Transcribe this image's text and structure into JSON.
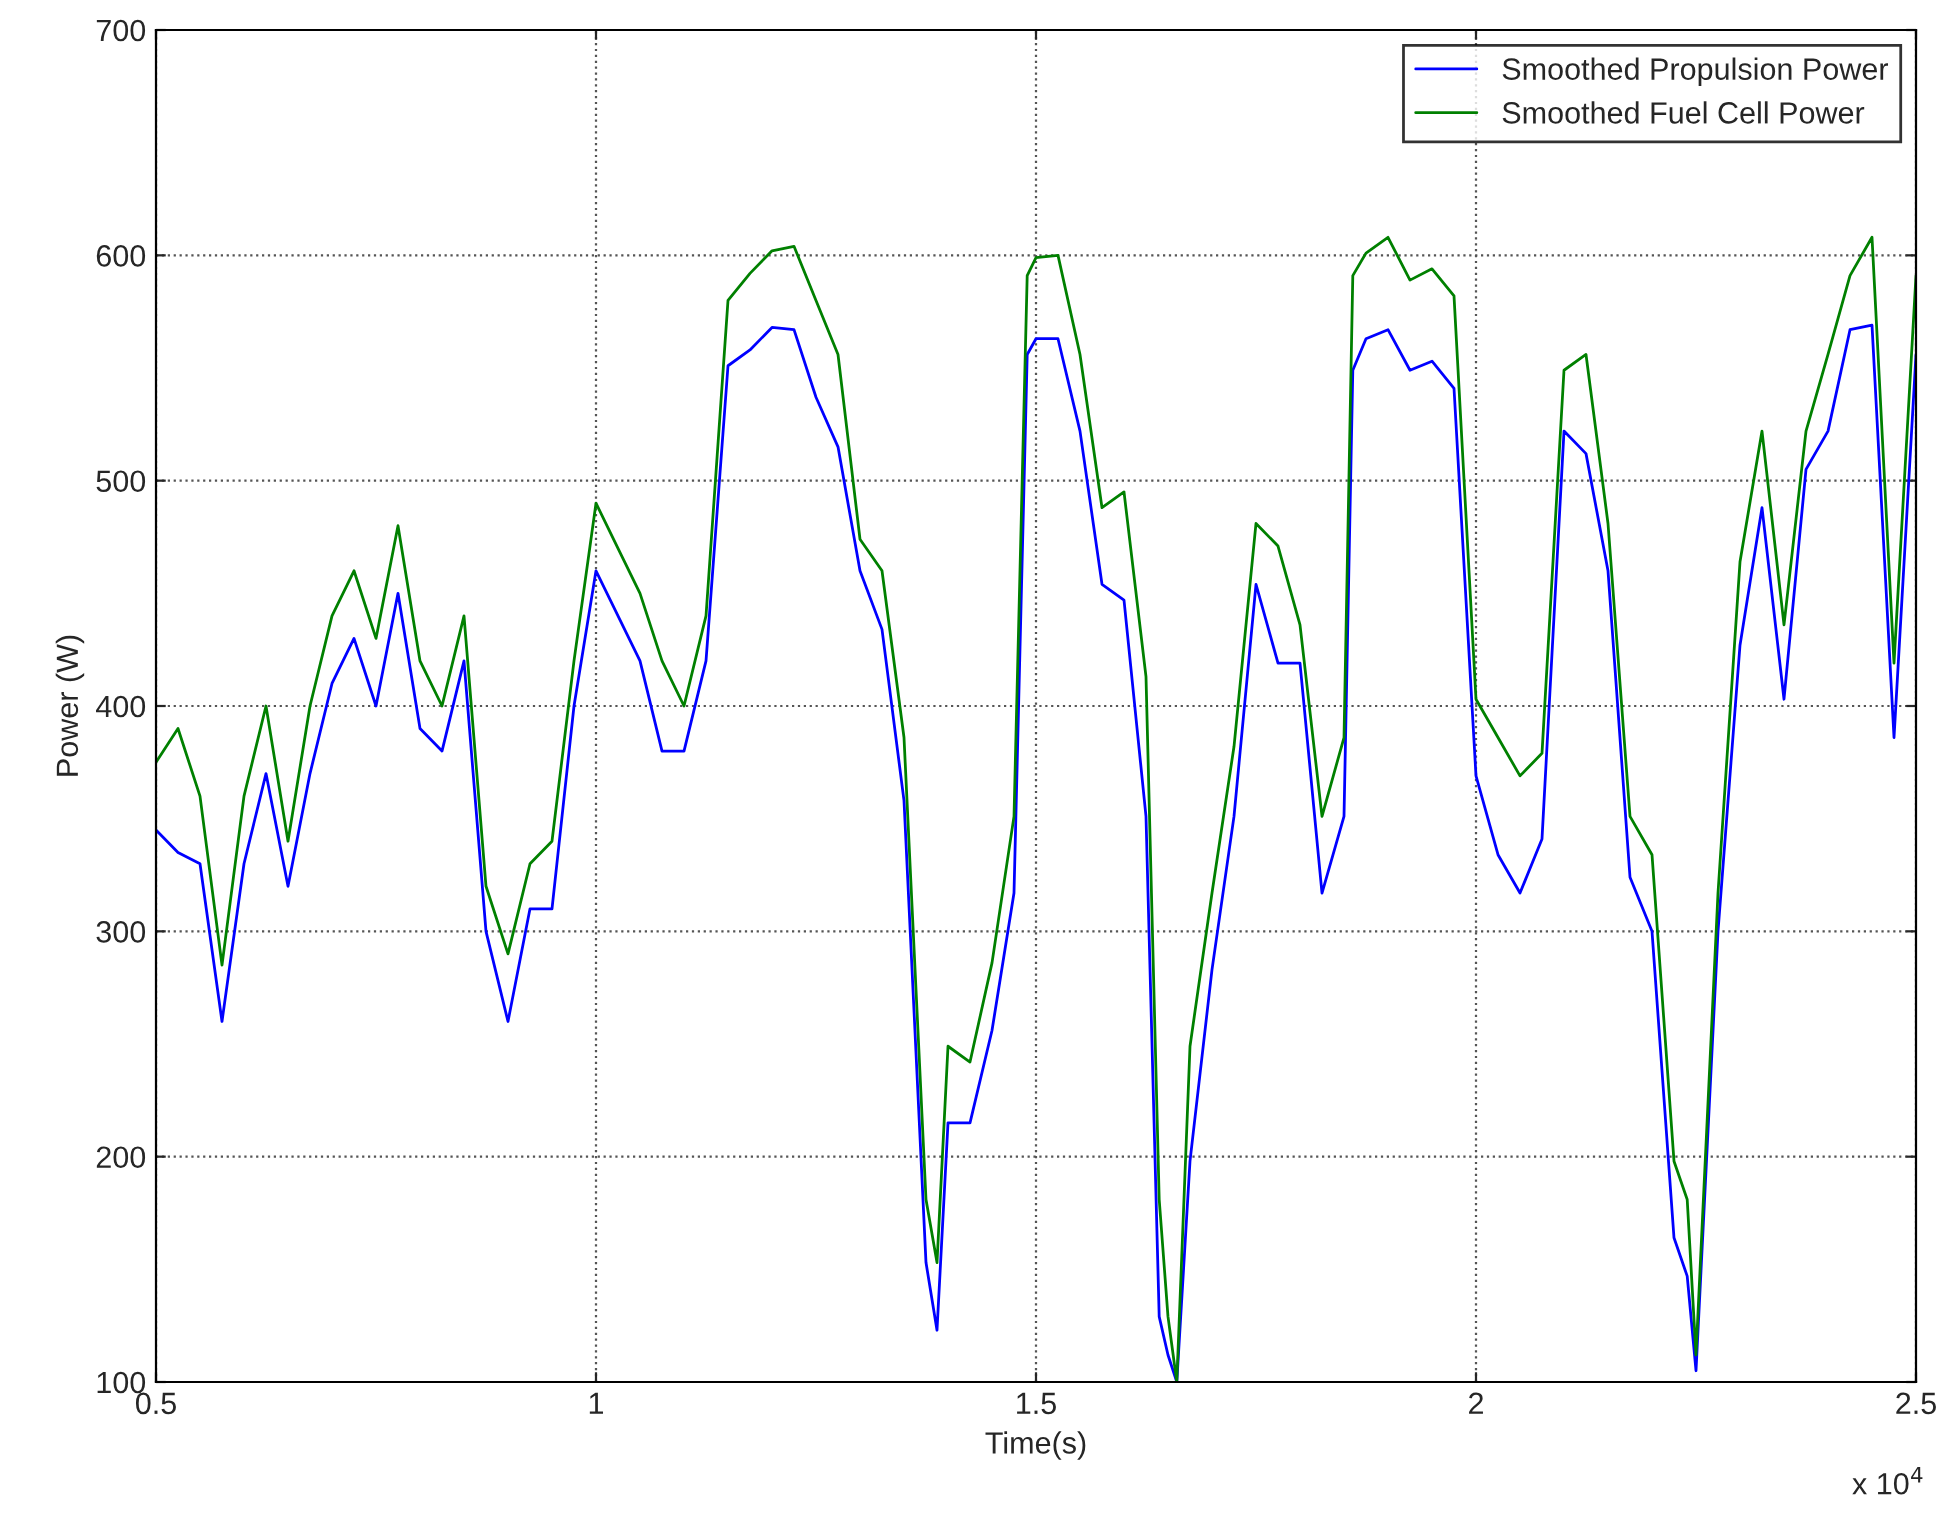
{
  "chart_data": {
    "type": "line",
    "xlabel": "Time(s)",
    "ylabel": "Power (W)",
    "annotations": [
      "x 10$^{4}$"
    ],
    "x": [
      0.5,
      0.525,
      0.55,
      0.575,
      0.6,
      0.625,
      0.65,
      0.675,
      0.7,
      0.725,
      0.75,
      0.775,
      0.8,
      0.825,
      0.85,
      0.875,
      0.9,
      0.925,
      0.95,
      0.975,
      1.0,
      1.025,
      1.05,
      1.075,
      1.1,
      1.125,
      1.15,
      1.175,
      1.2,
      1.225,
      1.25,
      1.275,
      1.3,
      1.325,
      1.35,
      1.375,
      1.3875,
      1.4,
      1.425,
      1.45,
      1.475,
      1.49,
      1.5,
      1.525,
      1.55,
      1.575,
      1.6,
      1.625,
      1.64,
      1.65,
      1.66,
      1.675,
      1.7,
      1.725,
      1.75,
      1.775,
      1.8,
      1.825,
      1.85,
      1.86,
      1.875,
      1.9,
      1.925,
      1.95,
      1.975,
      2.0,
      2.025,
      2.05,
      2.075,
      2.1,
      2.125,
      2.15,
      2.175,
      2.2,
      2.225,
      2.24,
      2.25,
      2.275,
      2.3,
      2.325,
      2.35,
      2.375,
      2.4,
      2.425,
      2.45,
      2.475,
      2.5
    ],
    "series": [
      {
        "name": "Smoothed Propulsion Power",
        "color": "#0000ff",
        "values": [
          345,
          335,
          330,
          260,
          330,
          370,
          320,
          370,
          410,
          430,
          400,
          450,
          390,
          380,
          420,
          300,
          260,
          310,
          310,
          400,
          460,
          440,
          420,
          380,
          380,
          420,
          551,
          558,
          568,
          567,
          537,
          515,
          460,
          434,
          358,
          153,
          123,
          215,
          215,
          256,
          317,
          556,
          563,
          563,
          522,
          454,
          447,
          351,
          129,
          112,
          100,
          198,
          283,
          351,
          454,
          419,
          419,
          317,
          351,
          549,
          563,
          567,
          549,
          553,
          541,
          369,
          334,
          317,
          341,
          522,
          512,
          460,
          324,
          300,
          164,
          147,
          105,
          300,
          427,
          488,
          403,
          505,
          522,
          567,
          569,
          386,
          556
        ]
      },
      {
        "name": "Smoothed Fuel Cell Power",
        "color": "#008000",
        "values": [
          375,
          390,
          360,
          285,
          360,
          400,
          340,
          400,
          440,
          460,
          430,
          480,
          420,
          400,
          440,
          320,
          290,
          330,
          340,
          420,
          490,
          470,
          450,
          420,
          400,
          440,
          580,
          592,
          602,
          604,
          580,
          556,
          474,
          460,
          386,
          181,
          153,
          249,
          242,
          286,
          351,
          591,
          599,
          600,
          556,
          488,
          495,
          413,
          181,
          129,
          100,
          249,
          317,
          382,
          481,
          471,
          436,
          351,
          386,
          591,
          601,
          608,
          589,
          594,
          582,
          403,
          386,
          369,
          379,
          549,
          556,
          481,
          351,
          334,
          198,
          181,
          112,
          317,
          464,
          522,
          436,
          522,
          556,
          591,
          608,
          419,
          591
        ]
      }
    ],
    "xlim": [
      0.5,
      2.5
    ],
    "xticks": [
      0.5,
      1,
      1.5,
      2,
      2.5
    ],
    "ylim": [
      100,
      700
    ],
    "yticks": [
      100,
      200,
      300,
      400,
      500,
      600,
      700
    ],
    "grid": true,
    "legend": "top right",
    "line_style": "solid"
  }
}
